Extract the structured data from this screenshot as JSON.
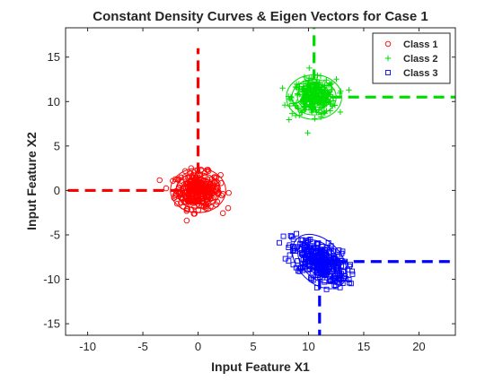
{
  "chart_data": {
    "type": "scatter",
    "title": "Constant Density Curves & Eigen Vectors for Case 1",
    "xlabel": "Input Feature X1",
    "ylabel": "Input Feature X2",
    "xlim": [
      -12,
      23.3
    ],
    "ylim": [
      -16.3,
      18.3
    ],
    "xticks": [
      -10,
      -5,
      0,
      5,
      10,
      15,
      20
    ],
    "yticks": [
      -15,
      -10,
      -5,
      0,
      5,
      10,
      15
    ],
    "grid": false,
    "legend_position": "top-right",
    "series": [
      {
        "name": "Class 1",
        "marker": "circle",
        "color": "#ff0000",
        "center": [
          0,
          0
        ],
        "std": [
          1.0,
          1.0
        ],
        "covariance_xy": 0,
        "points": 320
      },
      {
        "name": "Class 2",
        "marker": "plus",
        "color": "#00dd00",
        "center": [
          10.5,
          10.5
        ],
        "std": [
          1.0,
          1.0
        ],
        "covariance_xy": 0,
        "points": 320
      },
      {
        "name": "Class 3",
        "marker": "square",
        "color": "#0000ff",
        "center": [
          11,
          -8
        ],
        "std": [
          1.25,
          1.25
        ],
        "covariance_xy": -0.8,
        "points": 320
      }
    ],
    "density_curves": [
      {
        "class": "Class 1",
        "color": "#ff0000",
        "center": [
          0,
          0
        ],
        "rx_values": [
          0.5,
          1.0,
          1.5,
          2.0,
          2.5
        ],
        "ry_values": [
          0.5,
          1.0,
          1.5,
          2.0,
          2.5
        ],
        "angle_deg": 0
      },
      {
        "class": "Class 2",
        "color": "#00dd00",
        "center": [
          10.5,
          10.5
        ],
        "rx_values": [
          0.5,
          1.0,
          1.5,
          2.0,
          2.5
        ],
        "ry_values": [
          0.5,
          1.0,
          1.5,
          2.0,
          2.5
        ],
        "angle_deg": 0
      },
      {
        "class": "Class 3",
        "color": "#0000ff",
        "center": [
          11,
          -8
        ],
        "rx_values": [
          0.6,
          1.1,
          1.7,
          2.3,
          2.9
        ],
        "ry_values": [
          0.5,
          1.0,
          1.4,
          1.9,
          2.4
        ],
        "angle_deg": -45
      }
    ],
    "eigen_vectors": [
      {
        "class": "Class 1",
        "color": "#ff0000",
        "segments": [
          [
            [
              0,
              0
            ],
            [
              0,
              16
            ]
          ],
          [
            [
              0,
              0
            ],
            [
              -12,
              0
            ]
          ]
        ]
      },
      {
        "class": "Class 2",
        "color": "#00dd00",
        "segments": [
          [
            [
              10.5,
              10.5
            ],
            [
              10.5,
              18.3
            ]
          ],
          [
            [
              10.5,
              10.5
            ],
            [
              23.3,
              10.5
            ]
          ]
        ]
      },
      {
        "class": "Class 3",
        "color": "#0000ff",
        "segments": [
          [
            [
              11,
              -8
            ],
            [
              11,
              -16.3
            ]
          ],
          [
            [
              11,
              -8
            ],
            [
              23.3,
              -8
            ]
          ]
        ]
      }
    ]
  }
}
